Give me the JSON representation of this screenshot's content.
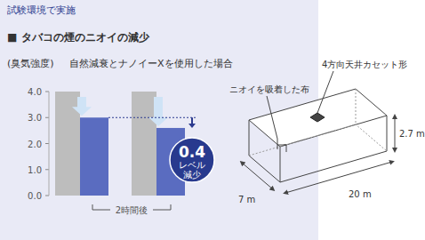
{
  "header": "試験環境で実施",
  "chart_data": {
    "type": "bar",
    "title": "■ タバコの煙のニオイの減少",
    "y_label": "(臭気強度)",
    "subtitle": "自然減衰とナノイーXを使用した場合",
    "categories": [
      null,
      null
    ],
    "series": [
      {
        "color": "#bdbdbd",
        "values": [
          4.0,
          4.0
        ]
      },
      {
        "color": "#5a6cc0",
        "values": [
          3.0,
          2.6
        ]
      }
    ],
    "x_label": "2時間後",
    "annotations": [
      "0.4",
      "レベル",
      "減少"
    ],
    "ylim": [
      0,
      4
    ],
    "yticks": [
      {
        "value": 0,
        "label": "0.0"
      },
      {
        "value": 1,
        "label": "1.0"
      },
      {
        "value": 2,
        "label": "2.0"
      },
      {
        "value": 3,
        "label": "3.0"
      },
      {
        "value": 4,
        "label": "4.0"
      }
    ],
    "grid": false,
    "tick_labels": "y"
  },
  "diagram": {
    "unit_label": "4方向天井カセット形",
    "cloth_label": "ニオイを吸着した布",
    "height": "2.7 m",
    "length": "20 m",
    "width": "7 m"
  }
}
